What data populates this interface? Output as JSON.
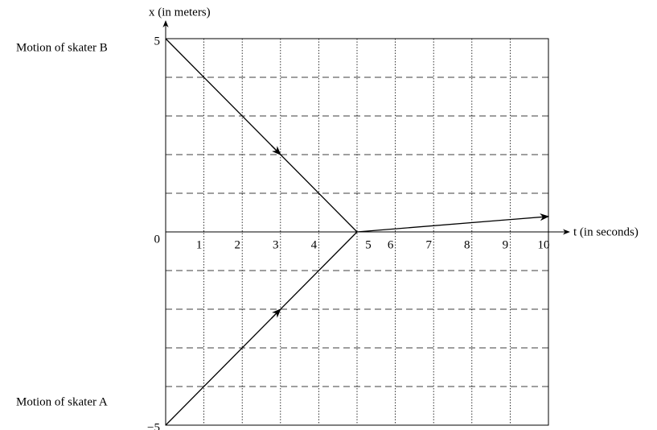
{
  "chart_data": {
    "type": "line",
    "xlabel": "t (in seconds)",
    "ylabel": "x (in meters)",
    "xlim": [
      0,
      10
    ],
    "ylim": [
      -5,
      5
    ],
    "xticks": [
      1,
      2,
      3,
      4,
      5,
      6,
      7,
      8,
      9,
      10
    ],
    "yticks": [
      {
        "value": -5,
        "label": "−5"
      },
      0,
      5
    ],
    "ygrid": [
      -4,
      -3,
      -2,
      -1,
      1,
      2,
      3,
      4
    ],
    "series": [
      {
        "name": "Motion of skater B",
        "color": "#000000",
        "x": [
          0,
          5
        ],
        "values": [
          5,
          0
        ]
      },
      {
        "name": "Motion of skater A",
        "color": "#000000",
        "x": [
          0,
          5
        ],
        "values": [
          -5,
          0
        ]
      },
      {
        "color": "#000000",
        "x": [
          5,
          10
        ],
        "values": [
          0,
          0.4
        ]
      }
    ]
  }
}
